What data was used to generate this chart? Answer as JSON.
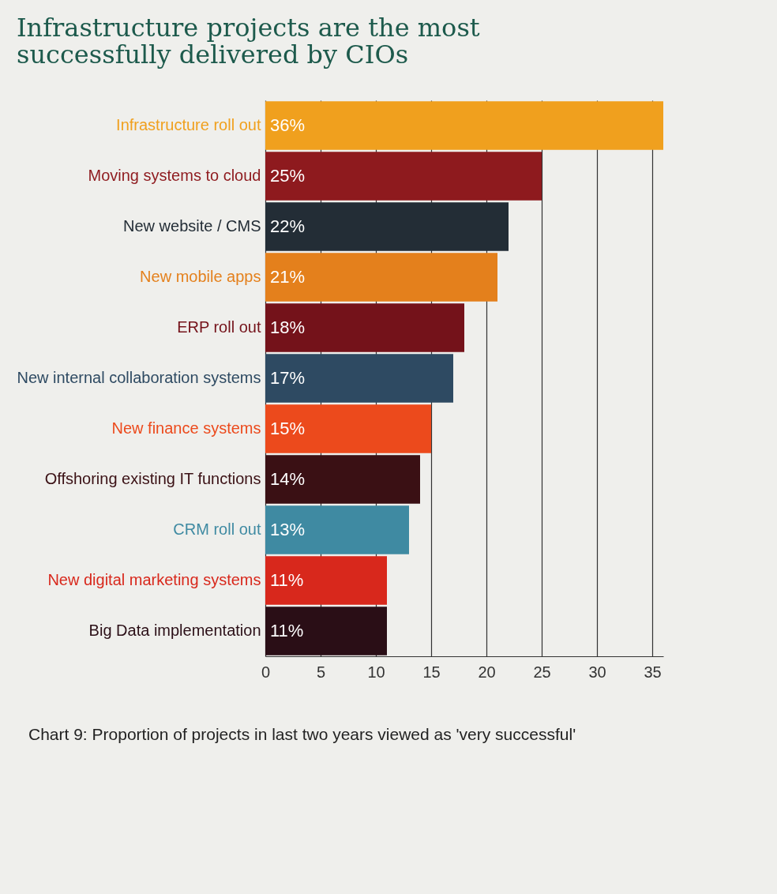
{
  "chart_data": {
    "type": "bar",
    "orientation": "horizontal",
    "title": "Infrastructure projects are the most successfully delivered by CIOs",
    "categories": [
      "Infrastructure roll out",
      "Moving systems to cloud",
      "New website / CMS",
      "New mobile apps",
      "ERP roll out",
      "New internal collaboration systems",
      "New finance systems",
      "Offshoring existing IT functions",
      "CRM roll out",
      "New digital marketing systems",
      "Big Data implementation"
    ],
    "values": [
      36,
      25,
      22,
      21,
      18,
      17,
      15,
      14,
      13,
      11,
      11
    ],
    "value_labels": [
      "36%",
      "25%",
      "22%",
      "21%",
      "18%",
      "17%",
      "15%",
      "14%",
      "13%",
      "11%",
      "11%"
    ],
    "colors": [
      "#f0a01e",
      "#8e1a1e",
      "#232d36",
      "#e4801c",
      "#74121a",
      "#2e4a62",
      "#ec4a1c",
      "#3a1014",
      "#3f8aa2",
      "#d8281c",
      "#2a0e16"
    ],
    "xlim": [
      0,
      36
    ],
    "xticks": [
      0,
      5,
      10,
      15,
      20,
      25,
      30,
      35
    ],
    "grid": "x",
    "annotations": [
      "Chart 9: Proportion of projects in last two years viewed as 'very successful'"
    ]
  }
}
